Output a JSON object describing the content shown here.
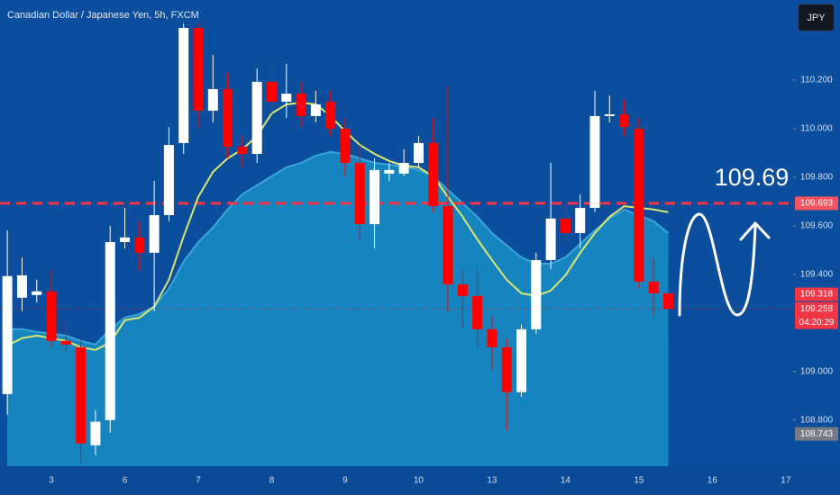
{
  "chart_data": {
    "type": "candlestick",
    "title": "Canadian Dollar / Japanese Yen, 5h, FXCM",
    "currency": "JPY",
    "categories": [
      null,
      null,
      null,
      "3",
      null,
      null,
      null,
      null,
      "6",
      null,
      null,
      null,
      null,
      "7",
      null,
      null,
      null,
      null,
      "8",
      null,
      null,
      null,
      null,
      "9",
      null,
      null,
      null,
      null,
      "10",
      null,
      null,
      null,
      null,
      "13",
      null,
      null,
      null,
      null,
      "14",
      null,
      null,
      null,
      null,
      "15",
      null,
      null,
      null,
      null,
      "16",
      null,
      null,
      null,
      null,
      "17"
    ],
    "open": [
      108.907,
      109.304,
      109.315,
      109.33,
      109.126,
      109.1,
      108.696,
      108.8,
      109.533,
      109.552,
      109.489,
      109.644,
      109.941,
      110.415,
      110.074,
      110.163,
      109.926,
      109.896,
      110.193,
      110.111,
      110.144,
      110.052,
      110.111,
      110.0,
      109.859,
      109.607,
      109.815,
      109.815,
      109.859,
      109.941,
      109.681,
      109.359,
      109.311,
      109.174,
      109.1,
      108.915,
      109.174,
      109.459,
      109.63,
      109.57,
      109.674,
      110.052,
      110.059,
      110.0,
      109.37,
      109.322,
      null,
      null,
      null,
      null,
      null,
      null,
      null,
      null
    ],
    "high": [
      109.581,
      109.47,
      109.378,
      109.415,
      109.211,
      109.137,
      108.841,
      109.6,
      109.674,
      109.619,
      109.785,
      110.007,
      110.433,
      110.433,
      110.304,
      110.23,
      109.97,
      110.248,
      110.267,
      110.267,
      110.193,
      110.156,
      110.156,
      110.044,
      109.933,
      109.878,
      109.859,
      109.915,
      109.97,
      110.044,
      110.174,
      109.415,
      109.415,
      109.23,
      109.137,
      109.193,
      109.489,
      109.859,
      109.693,
      109.73,
      110.156,
      110.137,
      110.119,
      110.044,
      109.47,
      109.452,
      null,
      null,
      null,
      null,
      null,
      null,
      null,
      null
    ],
    "low": [
      108.822,
      109.248,
      109.285,
      109.1,
      109.081,
      108.619,
      108.656,
      108.748,
      109.507,
      109.415,
      109.248,
      109.619,
      109.896,
      110.007,
      110.026,
      109.878,
      109.841,
      109.859,
      110.063,
      110.044,
      110.007,
      110.026,
      109.97,
      109.804,
      109.544,
      109.507,
      109.785,
      109.804,
      109.841,
      109.656,
      109.248,
      109.174,
      109.1,
      109.007,
      108.756,
      108.896,
      109.156,
      109.422,
      109.526,
      109.507,
      109.656,
      110.026,
      109.97,
      109.341,
      109.23,
      109.156,
      null,
      null,
      null,
      null,
      null,
      null,
      null,
      null
    ],
    "close": [
      109.393,
      109.396,
      109.33,
      109.126,
      109.111,
      108.704,
      108.793,
      109.533,
      109.552,
      109.489,
      109.644,
      109.933,
      110.415,
      110.074,
      110.163,
      109.926,
      109.896,
      110.193,
      110.111,
      110.144,
      110.052,
      110.1,
      110.0,
      109.859,
      109.607,
      109.83,
      109.83,
      109.859,
      109.941,
      109.681,
      109.359,
      109.311,
      109.174,
      109.1,
      108.915,
      109.174,
      109.459,
      109.63,
      109.57,
      109.674,
      110.052,
      110.059,
      110.007,
      109.37,
      109.322,
      109.258,
      null,
      null,
      null,
      null,
      null,
      null,
      null,
      null
    ],
    "up_color": "#ffffff",
    "down_color": "#ff0000",
    "series": [
      {
        "type": "area",
        "color": "#1685bf",
        "stroke": "#3aa6d8",
        "values": [
          109.174,
          109.174,
          109.163,
          109.156,
          109.148,
          109.126,
          109.111,
          109.174,
          109.222,
          109.237,
          109.267,
          109.341,
          109.452,
          109.533,
          109.593,
          109.667,
          109.73,
          109.767,
          109.804,
          109.841,
          109.859,
          109.889,
          109.904,
          109.896,
          109.878,
          109.859,
          109.852,
          109.844,
          109.83,
          109.804,
          109.748,
          109.693,
          109.637,
          109.57,
          109.519,
          109.47,
          109.444,
          109.444,
          109.47,
          109.526,
          109.581,
          109.63,
          109.667,
          109.644,
          109.619,
          109.57,
          null,
          null,
          null,
          null,
          null,
          null,
          null,
          null
        ]
      },
      {
        "type": "line",
        "color": "#dbe870",
        "values": [
          109.107,
          109.137,
          109.148,
          109.137,
          109.126,
          109.1,
          109.089,
          109.119,
          109.211,
          109.222,
          109.267,
          109.378,
          109.556,
          109.719,
          109.822,
          109.878,
          109.915,
          109.97,
          110.063,
          110.1,
          110.107,
          110.1,
          110.052,
          109.989,
          109.933,
          109.896,
          109.867,
          109.848,
          109.841,
          109.804,
          109.719,
          109.637,
          109.544,
          109.459,
          109.378,
          109.322,
          109.311,
          109.333,
          109.396,
          109.489,
          109.57,
          109.637,
          109.681,
          109.674,
          109.667,
          109.656,
          null,
          null,
          null,
          null,
          null,
          null,
          null,
          null
        ]
      }
    ],
    "ylim": [
      108.61,
      110.53
    ],
    "yticks": [
      {
        "value": 108.8,
        "label": "108.800"
      },
      {
        "value": 109.0,
        "label": "109.000"
      },
      {
        "value": 109.4,
        "label": "109.400"
      },
      {
        "value": 109.6,
        "label": "109.600"
      },
      {
        "value": 109.8,
        "label": "109.800"
      },
      {
        "value": 110.0,
        "label": "110.000"
      },
      {
        "value": 110.2,
        "label": "110.200"
      }
    ],
    "hline": {
      "value": 109.693,
      "color": "#f23645"
    },
    "price_markers": [
      {
        "value": 109.693,
        "color": "#f7525f"
      },
      {
        "value": 109.318,
        "color": "#f23645"
      },
      {
        "value": 109.258,
        "color": "#f23645",
        "countdown": "04:20:29"
      },
      {
        "value": 108.743,
        "color": "#787b86"
      }
    ],
    "annotation": "109.69"
  }
}
